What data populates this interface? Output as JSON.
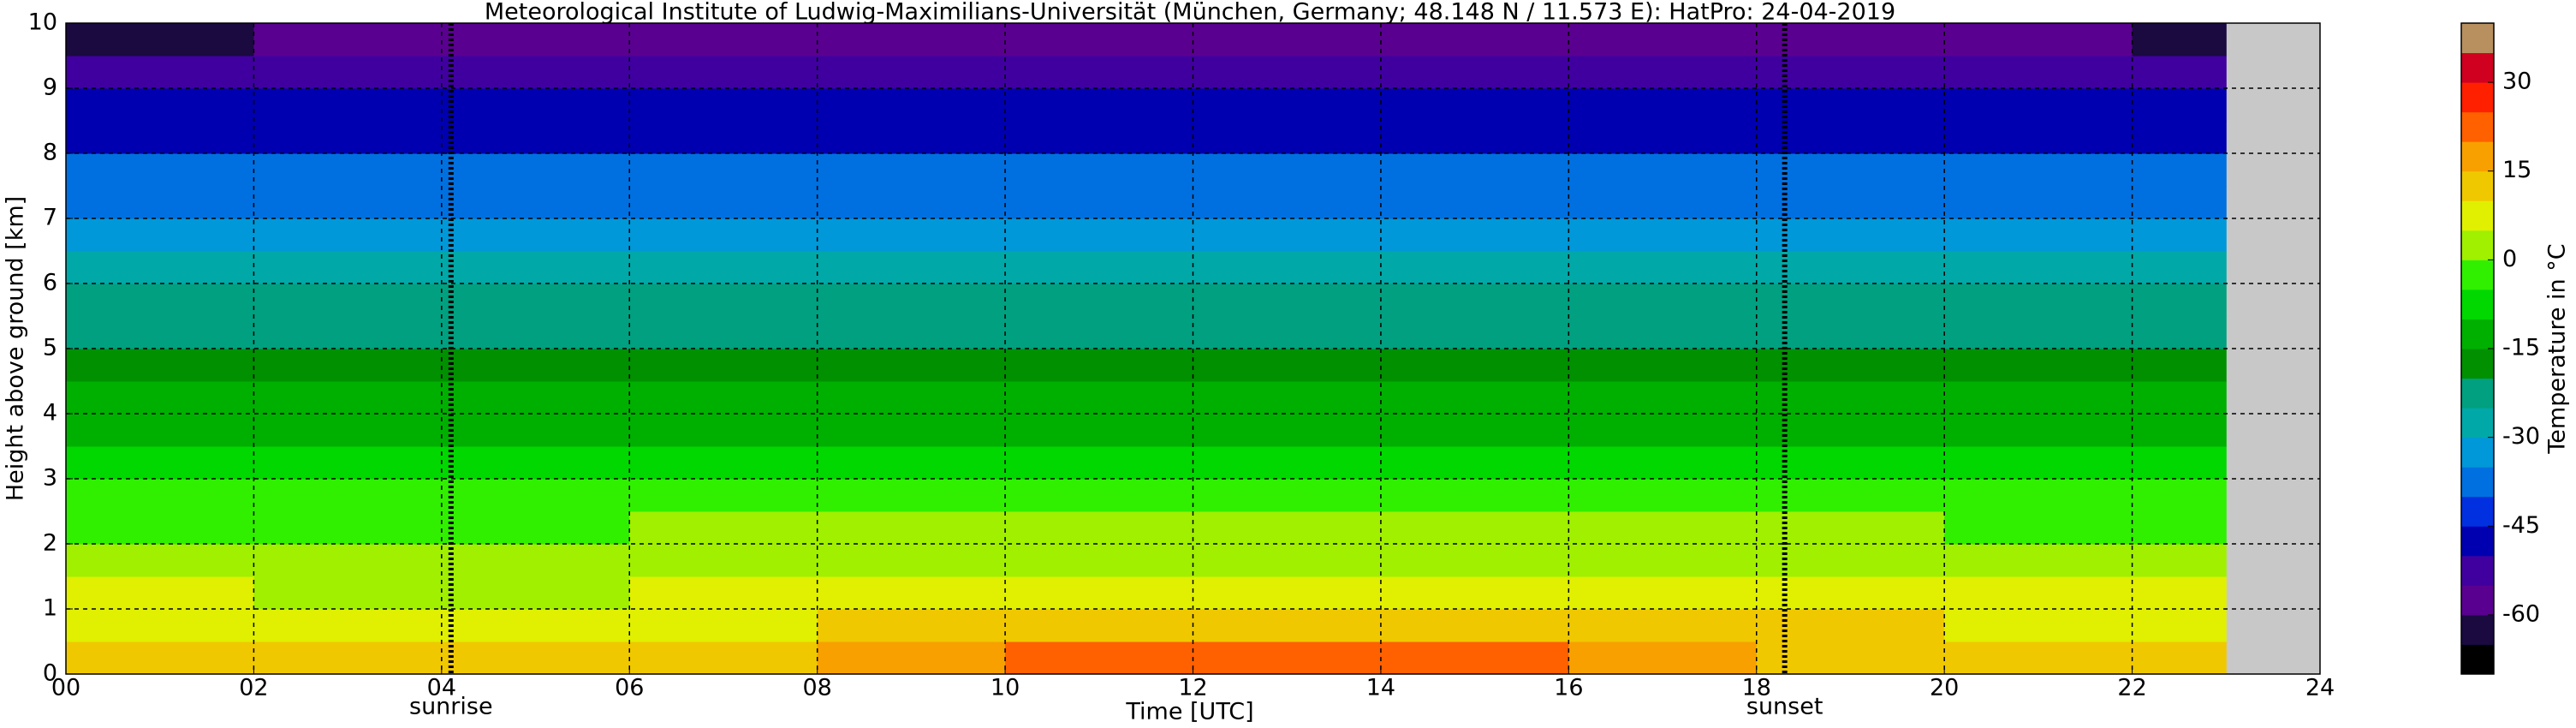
{
  "chart_data": {
    "type": "heatmap",
    "title": "Meteorological Institute of Ludwig-Maximilians-Universität (München, Germany; 48.148 N / 11.573 E):    HatPro: 24-04-2019",
    "x_label": "Time [UTC]",
    "y_label": "Height above ground [km]",
    "colorbar_label": "Temperature in °C",
    "x_bins": [
      0,
      2,
      4,
      6,
      8,
      10,
      12,
      14,
      16,
      18,
      20,
      22,
      23
    ],
    "y_bins": [
      0,
      0.5,
      1,
      1.5,
      2,
      2.5,
      3,
      3.5,
      4,
      4.5,
      5,
      5.5,
      6,
      6.5,
      7,
      7.5,
      8,
      8.5,
      9,
      9.5,
      10
    ],
    "values": [
      [
        12,
        11,
        11,
        14,
        18,
        21,
        22,
        21,
        18,
        14,
        13,
        12
      ],
      [
        9,
        8,
        8,
        9,
        10,
        11,
        12,
        12,
        11,
        10,
        9,
        9
      ],
      [
        6,
        5,
        5,
        6,
        7,
        7,
        8,
        8,
        7,
        6,
        6,
        6
      ],
      [
        3,
        2,
        2,
        3,
        3,
        4,
        4,
        4,
        4,
        3,
        3,
        3
      ],
      [
        -1,
        -1,
        -1,
        0,
        0,
        0,
        1,
        1,
        0,
        0,
        -1,
        -1
      ],
      [
        -5,
        -5,
        -5,
        -5,
        -4,
        -4,
        -4,
        -4,
        -4,
        -4,
        -5,
        -5
      ],
      [
        -8,
        -8,
        -8,
        -8,
        -8,
        -8,
        -8,
        -8,
        -8,
        -8,
        -8,
        -8
      ],
      [
        -12,
        -12,
        -12,
        -12,
        -12,
        -12,
        -12,
        -12,
        -12,
        -12,
        -12,
        -12
      ],
      [
        -15,
        -15,
        -15,
        -15,
        -15,
        -15,
        -15,
        -15,
        -15,
        -15,
        -15,
        -15
      ],
      [
        -18,
        -18,
        -18,
        -18,
        -18,
        -18,
        -18,
        -18,
        -18,
        -18,
        -18,
        -18
      ],
      [
        -21,
        -21,
        -21,
        -21,
        -21,
        -21,
        -21,
        -21,
        -21,
        -21,
        -21,
        -21
      ],
      [
        -25,
        -25,
        -25,
        -25,
        -25,
        -25,
        -25,
        -25,
        -25,
        -25,
        -25,
        -25
      ],
      [
        -28,
        -28,
        -28,
        -28,
        -28,
        -28,
        -28,
        -28,
        -28,
        -28,
        -28,
        -28
      ],
      [
        -32,
        -32,
        -32,
        -32,
        -32,
        -32,
        -32,
        -32,
        -32,
        -32,
        -32,
        -32
      ],
      [
        -36,
        -36,
        -36,
        -36,
        -36,
        -36,
        -36,
        -36,
        -36,
        -36,
        -36,
        -36
      ],
      [
        -40,
        -40,
        -40,
        -40,
        -40,
        -40,
        -40,
        -40,
        -40,
        -40,
        -40,
        -40
      ],
      [
        -46,
        -46,
        -46,
        -46,
        -46,
        -46,
        -46,
        -46,
        -46,
        -46,
        -46,
        -46
      ],
      [
        -50,
        -50,
        -50,
        -50,
        -50,
        -50,
        -50,
        -50,
        -50,
        -50,
        -50,
        -50
      ],
      [
        -53,
        -53,
        -53,
        -53,
        -53,
        -53,
        -53,
        -53,
        -53,
        -53,
        -53,
        -53
      ],
      [
        -62,
        -60,
        -56,
        -56,
        -56,
        -56,
        -56,
        -56,
        -56,
        -56,
        -60,
        -62
      ]
    ],
    "xlim": [
      0,
      24
    ],
    "xticks": [
      {
        "value": 0,
        "label": "00"
      },
      {
        "value": 2,
        "label": "02"
      },
      {
        "value": 4,
        "label": "04"
      },
      {
        "value": 6,
        "label": "06"
      },
      {
        "value": 8,
        "label": "08"
      },
      {
        "value": 10,
        "label": "10"
      },
      {
        "value": 12,
        "label": "12"
      },
      {
        "value": 14,
        "label": "14"
      },
      {
        "value": 16,
        "label": "16"
      },
      {
        "value": 18,
        "label": "18"
      },
      {
        "value": 20,
        "label": "20"
      },
      {
        "value": 22,
        "label": "22"
      },
      {
        "value": 24,
        "label": "24"
      }
    ],
    "ylim": [
      0,
      10
    ],
    "yticks": [
      0,
      1,
      2,
      3,
      4,
      5,
      6,
      7,
      8,
      9,
      10
    ],
    "grid": true,
    "clim": [
      -70,
      40
    ],
    "cticks": [
      -60,
      -45,
      -30,
      -15,
      0,
      15,
      30
    ],
    "colors": [
      "#000000",
      "#1a0a40",
      "#5a0090",
      "#4000a0",
      "#0000b0",
      "#0030e0",
      "#0070e0",
      "#0098d8",
      "#00a8a8",
      "#00a080",
      "#009000",
      "#00b000",
      "#00d800",
      "#30f000",
      "#a0f000",
      "#e0f000",
      "#f0c800",
      "#f8a000",
      "#ff6000",
      "#ff2000",
      "#d00020",
      "#b89060"
    ],
    "annotations": [
      {
        "text": "sunrise",
        "x": 4.1
      },
      {
        "text": "sunset",
        "x": 18.3
      }
    ]
  }
}
